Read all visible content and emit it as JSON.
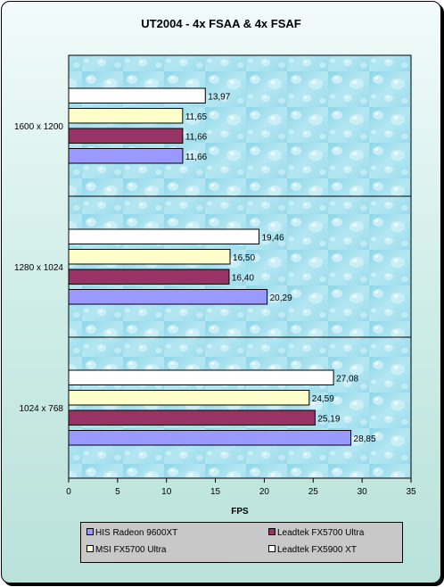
{
  "chart_data": {
    "type": "bar",
    "orientation": "horizontal",
    "title": "UT2004  - 4x FSAA & 4x FSAF",
    "xlabel": "FPS",
    "ylabel": "",
    "xlim": [
      0,
      35
    ],
    "xticks": [
      "0",
      "5",
      "10",
      "15",
      "20",
      "25",
      "30",
      "35"
    ],
    "categories": [
      "1600 x 1200",
      "1280 x 1024",
      "1024 x 768"
    ],
    "series": [
      {
        "name": "Leadtek FX5900 XT",
        "color": "#ffffff",
        "values": [
          13.97,
          19.46,
          27.08
        ],
        "labels": [
          "13,97",
          "19,46",
          "27,08"
        ]
      },
      {
        "name": "MSI FX5700 Ultra",
        "color": "#ffffcc",
        "values": [
          11.65,
          16.5,
          24.59
        ],
        "labels": [
          "11,65",
          "16,50",
          "24,59"
        ]
      },
      {
        "name": "Leadtek FX5700 Ultra",
        "color": "#993366",
        "values": [
          11.66,
          16.4,
          25.19
        ],
        "labels": [
          "11,66",
          "16,40",
          "25,19"
        ]
      },
      {
        "name": "HIS Radeon 9600XT",
        "color": "#9999ff",
        "values": [
          11.66,
          20.29,
          28.85
        ],
        "labels": [
          "11,66",
          "20,29",
          "28,85"
        ]
      }
    ],
    "grid": false,
    "legend_position": "bottom",
    "plot_background": "water-droplet texture, light cyan"
  },
  "legend": {
    "items": [
      {
        "label": "HIS Radeon 9600XT",
        "color": "#9999ff"
      },
      {
        "label": "Leadtek FX5700 Ultra",
        "color": "#993366"
      },
      {
        "label": "MSI FX5700 Ultra",
        "color": "#ffffcc"
      },
      {
        "label": "Leadtek FX5900 XT",
        "color": "#ffffff"
      }
    ]
  }
}
